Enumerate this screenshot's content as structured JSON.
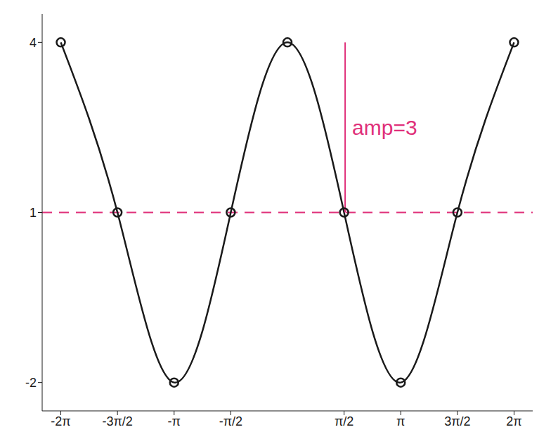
{
  "chart_data": {
    "type": "line",
    "x": [
      -6.2832,
      -4.7124,
      -3.1416,
      -1.5708,
      0,
      1.5708,
      3.1416,
      4.7124,
      6.2832
    ],
    "series": [
      {
        "values": [
          4,
          1,
          -2,
          1,
          4,
          1,
          -2,
          1,
          4
        ],
        "color": "#1a1a1a",
        "marker": "circle",
        "line_style": "solid"
      }
    ],
    "xlim": [
      -6.8,
      6.8
    ],
    "xticks": [
      {
        "value": -6.2832,
        "label": "-2π"
      },
      {
        "value": -4.7124,
        "label": "-3π/2"
      },
      {
        "value": -3.1416,
        "label": "-π"
      },
      {
        "value": -1.5708,
        "label": "-π/2"
      },
      {
        "value": 1.5708,
        "label": "π/2"
      },
      {
        "value": 3.1416,
        "label": "π"
      },
      {
        "value": 4.7124,
        "label": "3π/2"
      },
      {
        "value": 6.2832,
        "label": "2π"
      }
    ],
    "ylim": [
      -2.5,
      4.5
    ],
    "yticks": [
      -2,
      1,
      4
    ],
    "midline": {
      "y": 1,
      "color": "#e0307a",
      "line_style": "dashed"
    },
    "annotations": [
      {
        "text": "amp=3",
        "x": 1.6,
        "y_range": [
          1,
          4
        ],
        "color": "#e0307a"
      }
    ],
    "grid": false
  }
}
